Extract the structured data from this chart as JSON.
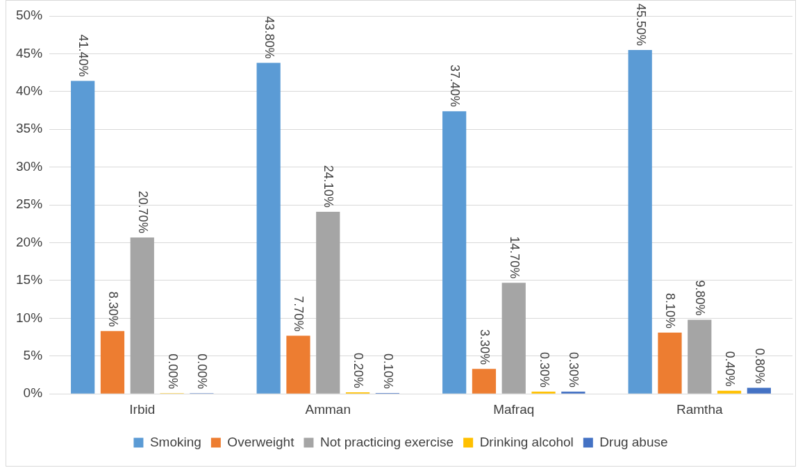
{
  "chart_data": {
    "type": "bar",
    "categories": [
      "Irbid",
      "Amman",
      "Mafraq",
      "Ramtha"
    ],
    "series": [
      {
        "name": "Smoking",
        "color": "#5b9bd5",
        "values": [
          41.4,
          43.8,
          37.4,
          45.5
        ],
        "value_labels": [
          "41.40%",
          "43.80%",
          "37.40%",
          "45.50%"
        ]
      },
      {
        "name": "Overweight",
        "color": "#ed7d31",
        "values": [
          8.3,
          7.7,
          3.3,
          8.1
        ],
        "value_labels": [
          "8.30%",
          "7.70%",
          "3.30%",
          "8.10%"
        ]
      },
      {
        "name": "Not practicing exercise",
        "color": "#a5a5a5",
        "values": [
          20.7,
          24.1,
          14.7,
          9.8
        ],
        "value_labels": [
          "20.70%",
          "24.10%",
          "14.70%",
          "9.80%"
        ]
      },
      {
        "name": "Drinking alcohol",
        "color": "#ffc000",
        "values": [
          0,
          0.2,
          0.3,
          0.4
        ],
        "value_labels": [
          "0.00%",
          "0.20%",
          "0.30%",
          "0.40%"
        ]
      },
      {
        "name": "Drug abuse",
        "color": "#4472c4",
        "values": [
          0,
          0.1,
          0.3,
          0.8
        ],
        "value_labels": [
          "0.00%",
          "0.10%",
          "0.30%",
          "0.80%"
        ]
      }
    ],
    "ylim": [
      0,
      50
    ],
    "yticks": [
      {
        "value": 0,
        "label": "0%"
      },
      {
        "value": 5,
        "label": "5%"
      },
      {
        "value": 10,
        "label": "10%"
      },
      {
        "value": 15,
        "label": "15%"
      },
      {
        "value": 20,
        "label": "20%"
      },
      {
        "value": 25,
        "label": "25%"
      },
      {
        "value": 30,
        "label": "30%"
      },
      {
        "value": 35,
        "label": "35%"
      },
      {
        "value": 40,
        "label": "40%"
      },
      {
        "value": 45,
        "label": "45%"
      },
      {
        "value": 50,
        "label": "50%"
      }
    ],
    "grid": "y",
    "legend": "bottom"
  }
}
